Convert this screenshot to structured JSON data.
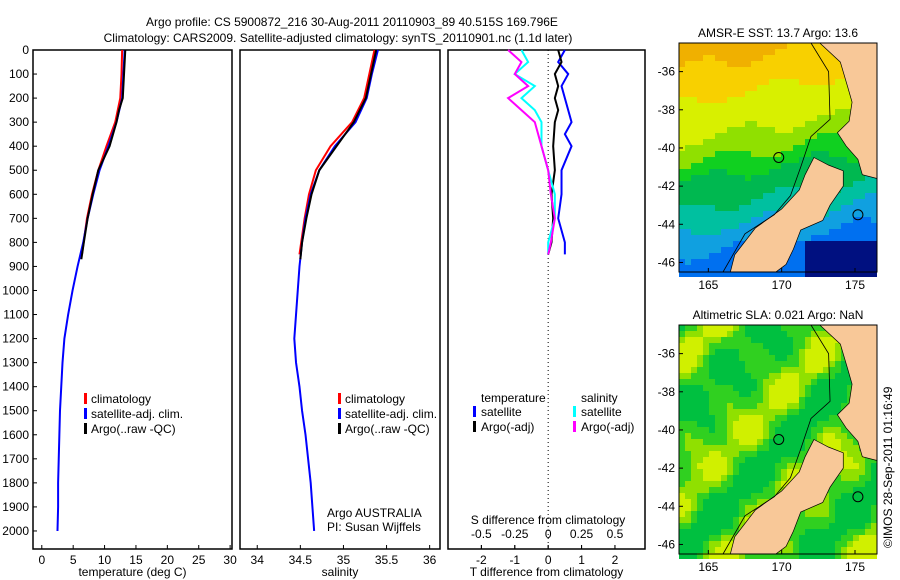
{
  "title_line1": "Argo profile: CS 5900872_216 30-Aug-2011 20110903_89 40.515S 169.796E",
  "title_line2": "Climatology: CARS2009. Satellite-adjusted climatology: synTS_20110901.nc (1.1d later)",
  "colors": {
    "climatology": "#ff0000",
    "satellite": "#0000ff",
    "argo": "#000000",
    "sal_satellite": "#00ffff",
    "sal_argo": "#ff00ff"
  },
  "chart_data": [
    {
      "type": "line",
      "xlabel": "temperature (deg C)",
      "ylabel": "",
      "xlim": [
        -1.4,
        30.3
      ],
      "ylim": [
        2075,
        0
      ],
      "xticks": [
        "0",
        "5",
        "10",
        "15",
        "20",
        "25",
        "30"
      ],
      "yticks": [
        "0",
        "100",
        "200",
        "300",
        "400",
        "500",
        "600",
        "700",
        "800",
        "900",
        "1000",
        "1100",
        "1200",
        "1300",
        "1400",
        "1500",
        "1600",
        "1700",
        "1800",
        "1900",
        "2000"
      ],
      "legend": [
        "climatology",
        "satellite-adj. clim.",
        "Argo(..raw -QC)"
      ],
      "series": [
        {
          "name": "climatology",
          "depth": [
            0,
            100,
            200,
            300,
            400,
            500,
            600,
            700,
            850
          ],
          "values": [
            12.8,
            12.7,
            12.5,
            11.7,
            10.3,
            9.0,
            8.0,
            7.2,
            6.4
          ]
        },
        {
          "name": "satellite-adj. clim.",
          "depth": [
            0,
            100,
            200,
            300,
            400,
            500,
            600,
            700,
            800,
            900,
            1000,
            1100,
            1200,
            1300,
            1400,
            1500,
            1600,
            1700,
            1800,
            1900,
            2000
          ],
          "values": [
            13.2,
            13.0,
            12.8,
            11.9,
            10.6,
            9.2,
            8.2,
            7.3,
            6.6,
            5.7,
            4.9,
            4.2,
            3.6,
            3.3,
            3.1,
            2.9,
            2.8,
            2.7,
            2.6,
            2.6,
            2.5
          ]
        },
        {
          "name": "Argo(..raw -QC)",
          "depth": [
            0,
            100,
            200,
            250,
            300,
            400,
            500,
            600,
            700,
            800,
            870
          ],
          "values": [
            13.3,
            13.1,
            12.9,
            12.3,
            11.9,
            10.8,
            9.0,
            8.1,
            7.3,
            6.7,
            6.3
          ]
        }
      ]
    },
    {
      "type": "line",
      "xlabel": "salinity",
      "xlim": [
        33.8,
        36.12
      ],
      "ylim": [
        2075,
        0
      ],
      "xticks": [
        "34",
        "34.5",
        "35",
        "35.5",
        "36"
      ],
      "legend": [
        "climatology",
        "satellite-adj. clim.",
        "Argo(..raw -QC)"
      ],
      "annotation": [
        "Argo AUSTRALIA",
        "PI: Susan Wijffels"
      ],
      "series": [
        {
          "name": "climatology",
          "depth": [
            0,
            100,
            200,
            300,
            400,
            500,
            600,
            700,
            850
          ],
          "values": [
            35.36,
            35.3,
            35.24,
            35.1,
            34.85,
            34.68,
            34.6,
            34.55,
            34.49
          ]
        },
        {
          "name": "satellite-adj. clim.",
          "depth": [
            0,
            100,
            200,
            300,
            400,
            500,
            600,
            700,
            800,
            900,
            1000,
            1100,
            1200,
            1300,
            1400,
            1500,
            1600,
            1700,
            1800,
            1900,
            2000
          ],
          "values": [
            35.4,
            35.33,
            35.27,
            35.14,
            34.9,
            34.72,
            34.62,
            34.56,
            34.52,
            34.49,
            34.47,
            34.45,
            34.43,
            34.45,
            34.49,
            34.52,
            34.56,
            34.59,
            34.62,
            34.64,
            34.66
          ]
        },
        {
          "name": "Argo(..raw -QC)",
          "depth": [
            0,
            100,
            200,
            300,
            400,
            500,
            600,
            700,
            800,
            870
          ],
          "values": [
            35.38,
            35.32,
            35.26,
            35.12,
            34.92,
            34.72,
            34.63,
            34.57,
            34.52,
            34.5
          ]
        }
      ]
    },
    {
      "type": "line",
      "xlabel": "T difference from climatology",
      "xlabel2": "S difference from climatology",
      "xlim": [
        -3,
        2.9
      ],
      "ylim": [
        2075,
        0
      ],
      "xticks": [
        "-2",
        "-1",
        "0",
        "1",
        "2"
      ],
      "xticks2": [
        "-0.5",
        "-0.25",
        "0",
        "0.25",
        "0.5"
      ],
      "legend_temperature": {
        "title": "temperature",
        "items": [
          "satellite",
          "Argo(-adj)"
        ]
      },
      "legend_salinity": {
        "title": "salinity",
        "items": [
          "satellite",
          "Argo(-adj)"
        ]
      },
      "series": [
        {
          "name": "temperature satellite",
          "depth": [
            0,
            50,
            100,
            150,
            200,
            250,
            300,
            350,
            400,
            500,
            600,
            700,
            800,
            850
          ],
          "values": [
            0.5,
            0.3,
            0.6,
            0.4,
            0.5,
            0.6,
            0.7,
            0.5,
            0.7,
            0.4,
            0.4,
            0.3,
            0.5,
            0.5
          ]
        },
        {
          "name": "temperature Argo(-adj)",
          "depth": [
            0,
            50,
            100,
            150,
            200,
            250,
            300,
            400,
            500,
            600,
            700,
            800,
            850
          ],
          "values": [
            0.3,
            0.4,
            0.2,
            0.3,
            0.2,
            0.3,
            0.2,
            0.15,
            0.2,
            0.1,
            0.15,
            0.1,
            0.0
          ]
        },
        {
          "name": "salinity satellite",
          "depth": [
            0,
            50,
            100,
            150,
            200,
            250,
            300,
            400,
            500,
            600,
            700,
            800,
            850
          ],
          "values": [
            -0.2,
            -0.15,
            -0.25,
            -0.1,
            -0.2,
            -0.1,
            -0.05,
            -0.05,
            0.0,
            0.05,
            0.05,
            0.0,
            0.0
          ]
        },
        {
          "name": "salinity Argo(-adj)",
          "depth": [
            0,
            50,
            100,
            150,
            200,
            250,
            300,
            400,
            500,
            600,
            700,
            800,
            850
          ],
          "values": [
            -0.3,
            -0.2,
            -0.25,
            -0.15,
            -0.3,
            -0.2,
            -0.1,
            -0.05,
            0.0,
            0.02,
            0.05,
            0.02,
            0.0
          ]
        }
      ]
    }
  ],
  "map_top": {
    "title": "AMSR-E SST: 13.7 Argo: 13.6",
    "xticks": [
      "165",
      "170",
      "175"
    ],
    "yticks": [
      "-36",
      "-38",
      "-40",
      "-42",
      "-44",
      "-46"
    ]
  },
  "map_bottom": {
    "title": "Altimetric SLA: 0.021 Argo: NaN",
    "xticks": [
      "165",
      "170",
      "175"
    ],
    "yticks": [
      "-36",
      "-38",
      "-40",
      "-42",
      "-44",
      "-46"
    ]
  },
  "credit": "©IMOS 28-Sep-2011 01:16:49"
}
